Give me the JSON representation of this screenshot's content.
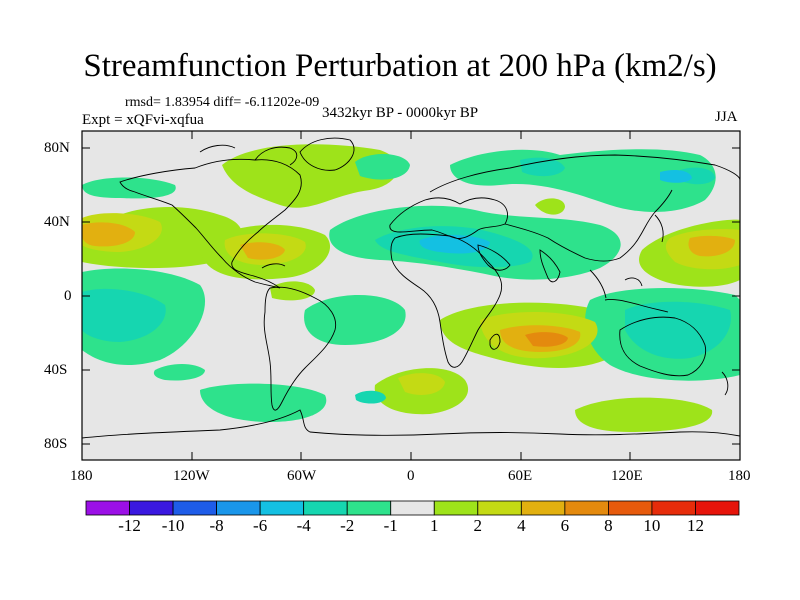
{
  "figure": {
    "title": "Streamfunction Perturbation at 200 hPa (km2/s)",
    "stats": "rmsd= 1.83954  diff= -6.11202e-09",
    "experiment": "Expt = xQFvi-xqfua",
    "period": "3432kyr BP - 0000kyr BP",
    "season": "JJA"
  },
  "axes": {
    "y_ticks": [
      "80N",
      "40N",
      "0",
      "40S",
      "80S"
    ],
    "x_ticks": [
      "180",
      "120W",
      "60W",
      "0",
      "60E",
      "120E",
      "180"
    ]
  },
  "colorbar": {
    "levels": [
      "-12",
      "-10",
      "-8",
      "-6",
      "-4",
      "-2",
      "-1",
      "1",
      "2",
      "4",
      "6",
      "8",
      "10",
      "12"
    ],
    "colors": [
      "#9b10e6",
      "#3a18e0",
      "#1e5ce8",
      "#1a96ea",
      "#14c0e2",
      "#16d6b0",
      "#2ee28c",
      "#e6e6e6",
      "#9ee31a",
      "#c4da14",
      "#e2b010",
      "#e48a0e",
      "#e65a0c",
      "#e62c0a",
      "#e6140a"
    ]
  },
  "chart_data": {
    "type": "heatmap",
    "variable": "Streamfunction Perturbation at 200 hPa",
    "units": "km2/s",
    "x_range": [
      -180,
      180
    ],
    "y_range": [
      -90,
      90
    ],
    "contour_levels": [
      -12,
      -10,
      -8,
      -6,
      -4,
      -2,
      -1,
      1,
      2,
      4,
      6,
      8,
      10,
      12
    ]
  }
}
